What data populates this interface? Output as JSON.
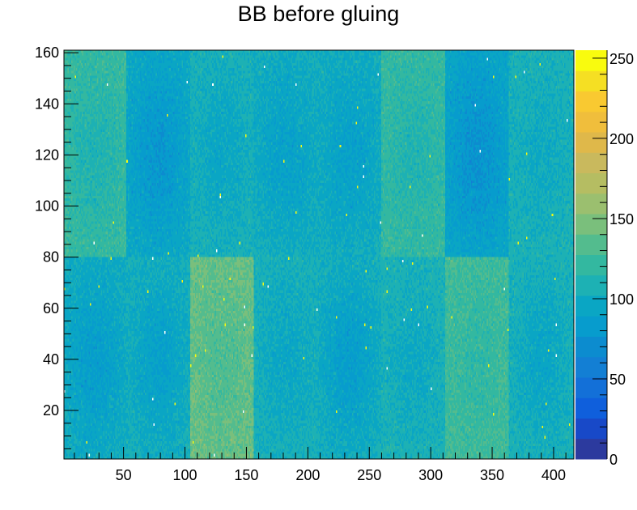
{
  "chart_data": {
    "type": "heatmap",
    "title": "BB before gluing",
    "xlabel": "",
    "ylabel": "",
    "xlim": [
      1.5,
      416.5
    ],
    "ylim": [
      1,
      161
    ],
    "zlim": [
      0,
      255
    ],
    "x_ticks": [
      "50",
      "100",
      "150",
      "200",
      "250",
      "300",
      "350",
      "400"
    ],
    "x_tick_values": [
      50,
      100,
      150,
      200,
      250,
      300,
      350,
      400
    ],
    "y_ticks": [
      "20",
      "40",
      "60",
      "80",
      "100",
      "120",
      "140",
      "160"
    ],
    "y_tick_values": [
      20,
      40,
      60,
      80,
      100,
      120,
      140,
      160
    ],
    "z_ticks": [
      "0",
      "50",
      "100",
      "150",
      "200",
      "250"
    ],
    "z_tick_values": [
      0,
      50,
      100,
      150,
      200,
      250
    ],
    "palette": [
      "#2c3a9e",
      "#1849c8",
      "#0f5fdc",
      "#1370d8",
      "#137fd4",
      "#0c8ccf",
      "#079ccd",
      "#0aa6c4",
      "#1db1b4",
      "#33b8a0",
      "#53bc8e",
      "#7abf7c",
      "#9bbf6f",
      "#b5bd62",
      "#c9b95d",
      "#dfb84a",
      "#f0be3c",
      "#f9c931",
      "#f5df23",
      "#f9fb0e"
    ],
    "blocks": [
      {
        "x": [
          0,
          52
        ],
        "y": [
          80,
          161
        ],
        "mean": 118,
        "dip": 10
      },
      {
        "x": [
          52,
          104
        ],
        "y": [
          80,
          161
        ],
        "mean": 90,
        "dip": 14
      },
      {
        "x": [
          104,
          156
        ],
        "y": [
          80,
          161
        ],
        "mean": 102,
        "dip": 8
      },
      {
        "x": [
          156,
          208
        ],
        "y": [
          80,
          161
        ],
        "mean": 97,
        "dip": 10
      },
      {
        "x": [
          208,
          260
        ],
        "y": [
          80,
          161
        ],
        "mean": 97,
        "dip": 10
      },
      {
        "x": [
          260,
          312
        ],
        "y": [
          80,
          161
        ],
        "mean": 118,
        "dip": 8
      },
      {
        "x": [
          312,
          364
        ],
        "y": [
          80,
          161
        ],
        "mean": 86,
        "dip": 14
      },
      {
        "x": [
          364,
          417
        ],
        "y": [
          80,
          161
        ],
        "mean": 104,
        "dip": 6
      },
      {
        "x": [
          0,
          52
        ],
        "y": [
          0,
          80
        ],
        "mean": 95,
        "dip": 12
      },
      {
        "x": [
          52,
          104
        ],
        "y": [
          0,
          80
        ],
        "mean": 98,
        "dip": 12
      },
      {
        "x": [
          104,
          156
        ],
        "y": [
          0,
          80
        ],
        "mean": 138,
        "dip": 8
      },
      {
        "x": [
          156,
          208
        ],
        "y": [
          0,
          80
        ],
        "mean": 102,
        "dip": 8
      },
      {
        "x": [
          208,
          260
        ],
        "y": [
          0,
          80
        ],
        "mean": 96,
        "dip": 14
      },
      {
        "x": [
          260,
          312
        ],
        "y": [
          0,
          80
        ],
        "mean": 104,
        "dip": 8
      },
      {
        "x": [
          312,
          364
        ],
        "y": [
          0,
          80
        ],
        "mean": 124,
        "dip": 6
      },
      {
        "x": [
          364,
          417
        ],
        "y": [
          0,
          80
        ],
        "mean": 102,
        "dip": 10
      }
    ]
  }
}
